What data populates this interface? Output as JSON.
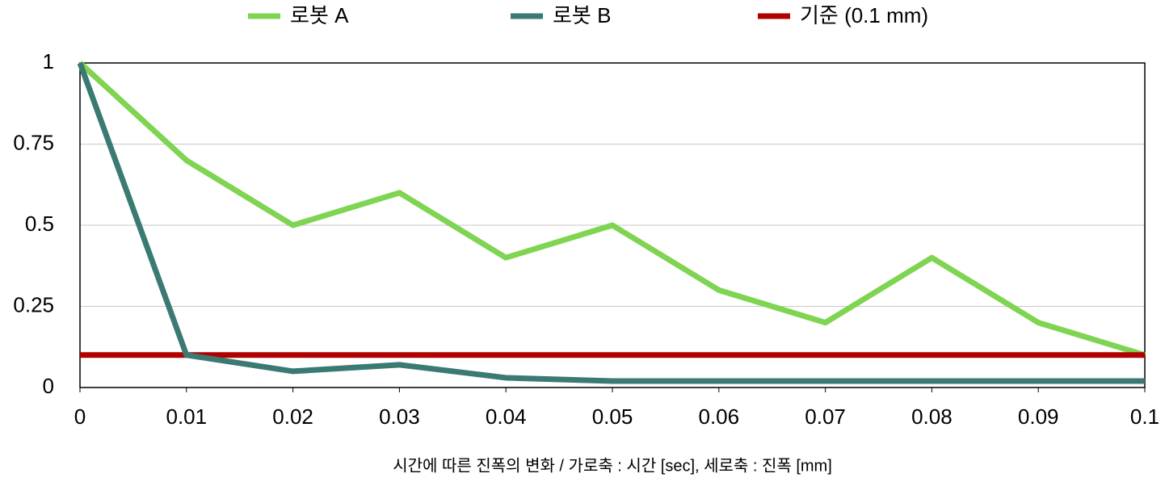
{
  "chart_data": {
    "type": "line",
    "x_label": "시간에 따른 진폭의 변화 / 가로축 : 시간 [sec], 세로축 : 진폭 [mm]",
    "x": [
      0,
      0.01,
      0.02,
      0.03,
      0.04,
      0.05,
      0.06,
      0.07,
      0.08,
      0.09,
      0.1
    ],
    "series": [
      {
        "name": "로봇 A",
        "color": "#7fd451",
        "values": [
          1,
          0.7,
          0.5,
          0.6,
          0.4,
          0.5,
          0.3,
          0.2,
          0.4,
          0.2,
          0.1
        ]
      },
      {
        "name": "로봇 B",
        "color": "#3a7a72",
        "values": [
          1,
          0.1,
          0.05,
          0.07,
          0.03,
          0.02,
          0.02,
          0.02,
          0.02,
          0.02,
          0.02
        ]
      },
      {
        "name": "기준 (0.1 mm)",
        "color": "#b00000",
        "values": [
          0.1,
          0.1,
          0.1,
          0.1,
          0.1,
          0.1,
          0.1,
          0.1,
          0.1,
          0.1,
          0.1
        ]
      }
    ],
    "xlim": [
      0,
      0.1
    ],
    "xticks": [
      0,
      0.01,
      0.02,
      0.03,
      0.04,
      0.05,
      0.06,
      0.07,
      0.08,
      0.09,
      0.1
    ],
    "ylim": [
      0,
      1
    ],
    "yticks": [
      0,
      0.25,
      0.5,
      0.75,
      1
    ],
    "grid": true,
    "legend": "top"
  }
}
